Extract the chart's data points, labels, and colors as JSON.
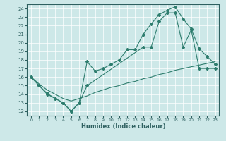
{
  "xlabel": "Humidex (Indice chaleur)",
  "bg_color": "#cde8e8",
  "line_color": "#2e7d6e",
  "grid_color": "#ffffff",
  "tick_color": "#2e6060",
  "xlim": [
    -0.5,
    23.5
  ],
  "ylim": [
    11.5,
    24.5
  ],
  "yticks": [
    12,
    13,
    14,
    15,
    16,
    17,
    18,
    19,
    20,
    21,
    22,
    23,
    24
  ],
  "xticks": [
    0,
    1,
    2,
    3,
    4,
    5,
    6,
    7,
    8,
    9,
    10,
    11,
    12,
    13,
    14,
    15,
    16,
    17,
    18,
    19,
    20,
    21,
    22,
    23
  ],
  "line1_x": [
    0,
    1,
    2,
    3,
    4,
    5,
    6,
    7,
    14,
    15,
    16,
    17,
    18,
    19,
    20,
    21,
    22,
    23
  ],
  "line1_y": [
    16,
    15,
    14,
    13.5,
    13,
    12,
    13,
    15,
    19.5,
    19.5,
    22.5,
    23.5,
    23.5,
    19.5,
    21.5,
    17.0,
    17.0,
    17.0
  ],
  "line2_x": [
    0,
    1,
    2,
    3,
    4,
    5,
    6,
    7,
    8,
    9,
    10,
    11,
    12,
    13,
    14,
    15,
    16,
    17,
    18,
    19,
    20,
    21,
    22,
    23
  ],
  "line2_y": [
    16.0,
    15.2,
    14.5,
    14.0,
    13.5,
    13.2,
    13.5,
    13.8,
    14.2,
    14.5,
    14.8,
    15.0,
    15.3,
    15.5,
    15.8,
    16.0,
    16.3,
    16.5,
    16.8,
    17.0,
    17.2,
    17.4,
    17.6,
    17.8
  ],
  "line3_x": [
    0,
    1,
    2,
    3,
    4,
    5,
    6,
    7,
    8,
    9,
    10,
    11,
    12,
    13,
    14,
    15,
    16,
    17,
    18,
    19,
    20,
    21,
    22,
    23
  ],
  "line3_y": [
    16,
    15,
    14.1,
    13.5,
    13,
    12,
    13,
    17.8,
    16.7,
    17.0,
    17.5,
    18.0,
    19.2,
    19.2,
    21.0,
    22.2,
    23.3,
    23.8,
    24.2,
    22.8,
    21.6,
    19.3,
    18.4,
    17.5
  ]
}
